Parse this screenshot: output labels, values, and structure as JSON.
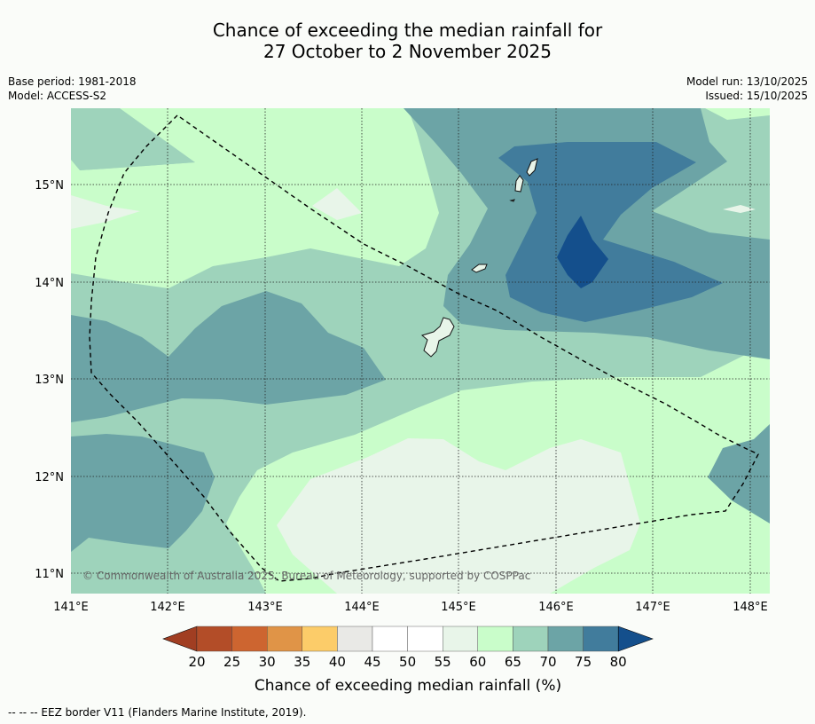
{
  "title_line1": "Chance of exceeding the median rainfall for",
  "title_line2": "27 October to 2 November 2025",
  "meta": {
    "base_period": "Base period: 1981-2018",
    "model": "Model: ACCESS-S2",
    "model_run": "Model run: 13/10/2025",
    "issued": "Issued: 15/10/2025"
  },
  "map": {
    "lon_ticks": [
      "141°E",
      "142°E",
      "143°E",
      "144°E",
      "145°E",
      "146°E",
      "147°E",
      "148°E"
    ],
    "lat_ticks": [
      "15°N",
      "14°N",
      "13°N",
      "12°N",
      "11°N"
    ],
    "copyright": "© Commonwealth of Australia 2025, Bureau of Meteorology, supported by COSPPac"
  },
  "colorbar": {
    "labels": [
      "20",
      "25",
      "30",
      "35",
      "40",
      "45",
      "50",
      "55",
      "60",
      "65",
      "70",
      "75",
      "80"
    ],
    "colors": [
      "#b34d28",
      "#cd6530",
      "#e09447",
      "#fccc69",
      "#e9e9e6",
      "#ffffff",
      "#ffffff",
      "#e8f5e9",
      "#c9fdca",
      "#9ed3bb",
      "#6ca4a6",
      "#417c9c",
      "#144f8c"
    ],
    "under_color": "#a13e22",
    "over_color": "#144f8c",
    "label": "Chance of exceeding median rainfall (%)"
  },
  "legend": {
    "eez_text": "--  --  -- EEZ border V11 (Flanders Marine Institute, 2019)."
  },
  "fill_colors": {
    "pale": "#e8f5e9",
    "light_green": "#c9fdca",
    "mint": "#9ed3bb",
    "teal": "#6ca4a6",
    "blue": "#417c9c",
    "dark_blue": "#144f8c"
  }
}
